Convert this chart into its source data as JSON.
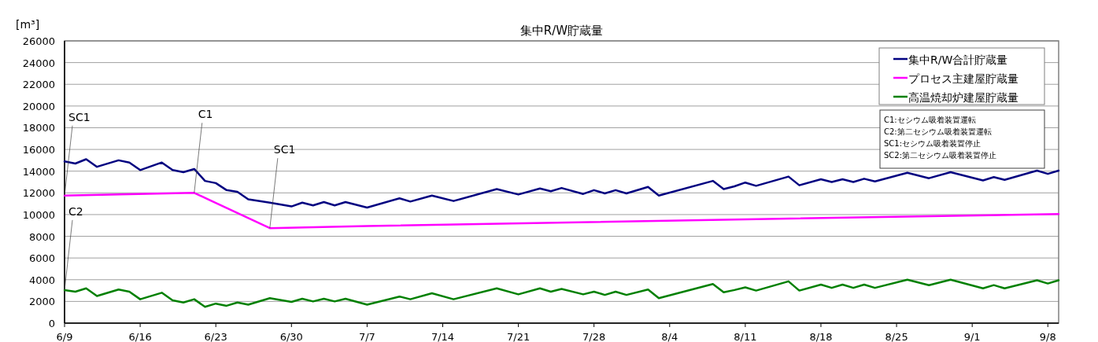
{
  "chart_data": {
    "type": "line",
    "title": "集中R/W貯蔵量",
    "ylabel": "[m³]",
    "xlim": [
      "--06-09",
      "--09-09"
    ],
    "xticks": [
      {
        "value": "--06-09",
        "label": "6/9"
      },
      {
        "value": "--06-16",
        "label": "6/16"
      },
      {
        "value": "--06-23",
        "label": "6/23"
      },
      {
        "value": "--06-30",
        "label": "6/30"
      },
      {
        "value": "--07-07",
        "label": "7/7"
      },
      {
        "value": "--07-14",
        "label": "7/14"
      },
      {
        "value": "--07-21",
        "label": "7/21"
      },
      {
        "value": "--07-28",
        "label": "7/28"
      },
      {
        "value": "--08-04",
        "label": "8/4"
      },
      {
        "value": "--08-11",
        "label": "8/11"
      },
      {
        "value": "--08-18",
        "label": "8/18"
      },
      {
        "value": "--08-25",
        "label": "8/25"
      },
      {
        "value": "--09-01",
        "label": "9/1"
      },
      {
        "value": "--09-08",
        "label": "9/8"
      }
    ],
    "ylim": [
      0,
      26000
    ],
    "yticks": [
      0,
      2000,
      4000,
      6000,
      8000,
      10000,
      12000,
      14000,
      16000,
      18000,
      20000,
      22000,
      24000,
      26000
    ],
    "grid": "y",
    "legend": "top right",
    "marker": "none",
    "line_style": "solid",
    "x": [
      "--06-09",
      "--06-10",
      "--06-11",
      "--06-12",
      "--06-14",
      "--06-15",
      "--06-16",
      "--06-18",
      "--06-19",
      "--06-20",
      "--06-21",
      "--06-22",
      "--06-23",
      "--06-24",
      "--06-25",
      "--06-26",
      "--06-28",
      "--06-30",
      "--07-01",
      "--07-02",
      "--07-03",
      "--07-04",
      "--07-05",
      "--07-07",
      "--07-10",
      "--07-11",
      "--07-13",
      "--07-15",
      "--07-19",
      "--07-21",
      "--07-23",
      "--07-24",
      "--07-25",
      "--07-27",
      "--07-28",
      "--07-29",
      "--07-30",
      "--07-31",
      "--08-02",
      "--08-03",
      "--08-08",
      "--08-09",
      "--08-10",
      "--08-11",
      "--08-12",
      "--08-15",
      "--08-16",
      "--08-18",
      "--08-19",
      "--08-20",
      "--08-21",
      "--08-22",
      "--08-23",
      "--08-26",
      "--08-28",
      "--08-30",
      "--09-02",
      "--09-03",
      "--09-04",
      "--09-07",
      "--09-08",
      "--09-09"
    ],
    "series": [
      {
        "name": "集中R/W合計貯蔵量",
        "color": "#000080",
        "values": [
          14900,
          14700,
          15100,
          14400,
          15000,
          14800,
          14100,
          14800,
          14100,
          13900,
          14200,
          13100,
          12900,
          12250,
          12100,
          11400,
          11100,
          10750,
          11100,
          10850,
          11150,
          10850,
          11150,
          10650,
          11500,
          11200,
          11750,
          11250,
          12350,
          11850,
          12400,
          12150,
          12450,
          11900,
          12250,
          11950,
          12250,
          11950,
          12550,
          11750,
          13100,
          12350,
          12600,
          12950,
          12650,
          13500,
          12700,
          13250,
          13000,
          13250,
          13000,
          13300,
          13050,
          13850,
          13350,
          13900,
          13150,
          13450,
          13200,
          14050,
          13750,
          14050
        ]
      },
      {
        "name": "プロセス主建屋貯蔵量",
        "color": "#ff00ff",
        "x": [
          "--06-09",
          "--06-21",
          "--06-28",
          "--07-07",
          "--08-10",
          "--09-09"
        ],
        "values": [
          11750,
          12000,
          8750,
          8950,
          9550,
          10050
        ]
      },
      {
        "name": "高温焼却炉建屋貯蔵量",
        "color": "#008000",
        "values": [
          3050,
          2900,
          3200,
          2500,
          3100,
          2900,
          2200,
          2800,
          2100,
          1900,
          2200,
          1500,
          1800,
          1600,
          1900,
          1700,
          2300,
          1950,
          2250,
          2000,
          2250,
          2000,
          2250,
          1700,
          2450,
          2200,
          2750,
          2200,
          3200,
          2650,
          3200,
          2900,
          3150,
          2650,
          2900,
          2600,
          2900,
          2600,
          3100,
          2300,
          3600,
          2850,
          3050,
          3300,
          3000,
          3850,
          3000,
          3550,
          3250,
          3550,
          3250,
          3550,
          3250,
          4000,
          3500,
          4000,
          3200,
          3500,
          3200,
          3950,
          3650,
          3950
        ]
      }
    ],
    "annotations": [
      {
        "text": "SC1",
        "x": "--06-09",
        "y": 11750
      },
      {
        "text": "C1",
        "x": "--06-21",
        "y": 12000
      },
      {
        "text": "SC1",
        "x": "--06-28",
        "y": 8750
      },
      {
        "text": "C2",
        "x": "--06-09",
        "y": 3050
      },
      "C1:セシウム吸着装置運転",
      "C2:第二セシウム吸着装置運転",
      "SC1:セシウム吸着装置停止",
      "SC2:第二セシウム吸着装置停止"
    ]
  }
}
